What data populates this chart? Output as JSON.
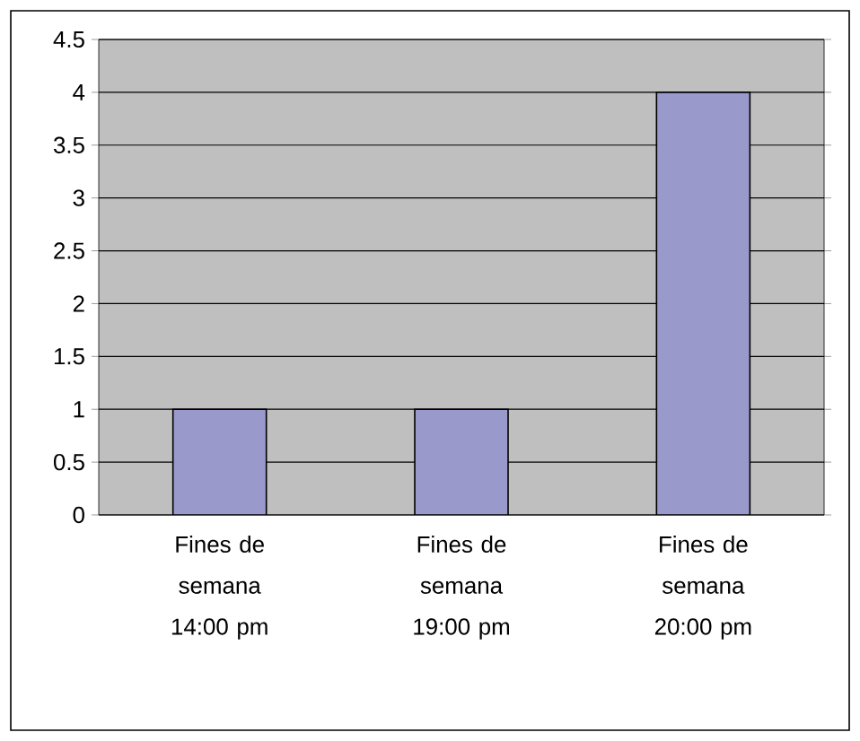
{
  "chart_data": {
    "type": "bar",
    "categories": [
      "Fines de semana 14:00 pm",
      "Fines de semana 19:00 pm",
      "Fines de semana 20:00 pm"
    ],
    "values": [
      1,
      1,
      4
    ],
    "color": "#9999cc",
    "ylim": [
      0,
      4.5
    ],
    "yticks": [
      0,
      0.5,
      1,
      1.5,
      2,
      2.5,
      3,
      3.5,
      4,
      4.5
    ],
    "grid": "y"
  }
}
